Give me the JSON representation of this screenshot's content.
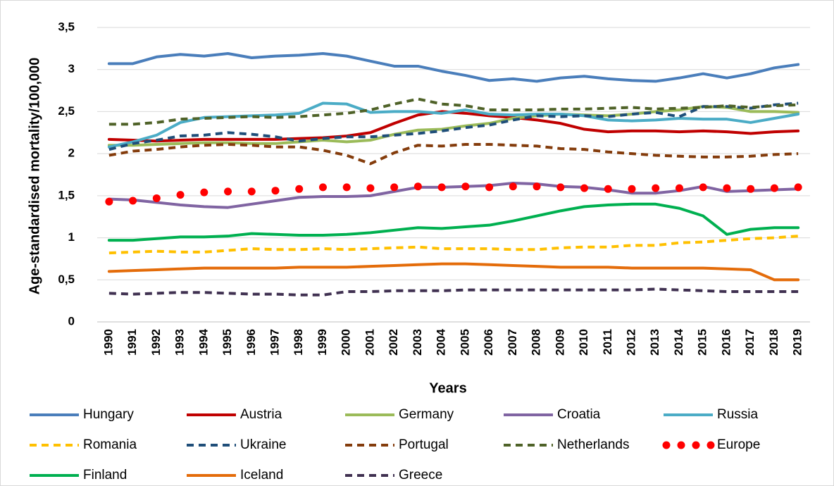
{
  "chart_data": {
    "type": "line",
    "x_label": "Years",
    "y_label": "Age-standardised mortality/100,000",
    "categories": [
      "1990",
      "1991",
      "1992",
      "1993",
      "1994",
      "1995",
      "1996",
      "1997",
      "1998",
      "1999",
      "2000",
      "2001",
      "2002",
      "2003",
      "2004",
      "2005",
      "2006",
      "2007",
      "2008",
      "2009",
      "2010",
      "2011",
      "2012",
      "2013",
      "2014",
      "2015",
      "2016",
      "2017",
      "2018",
      "2019"
    ],
    "ylim": [
      0,
      3.5
    ],
    "yticks": [
      0,
      {
        "value": 0.5,
        "label": "0,5"
      },
      1,
      {
        "value": 1.5,
        "label": "1,5"
      },
      2,
      {
        "value": 2.5,
        "label": "2,5"
      },
      3,
      {
        "value": 3.5,
        "label": "3,5"
      }
    ],
    "grid": true,
    "legend": "bottom",
    "series": [
      {
        "name": "Hungary",
        "color": "#4a7ebb",
        "style": "solid",
        "values": [
          3.07,
          3.07,
          3.15,
          3.18,
          3.16,
          3.19,
          3.14,
          3.16,
          3.17,
          3.19,
          3.16,
          3.1,
          3.04,
          3.04,
          2.98,
          2.93,
          2.87,
          2.89,
          2.86,
          2.9,
          2.92,
          2.89,
          2.87,
          2.86,
          2.9,
          2.95,
          2.9,
          2.95,
          3.02,
          3.06
        ]
      },
      {
        "name": "Austria",
        "color": "#c00000",
        "style": "solid",
        "values": [
          2.17,
          2.16,
          2.15,
          2.16,
          2.17,
          2.17,
          2.17,
          2.17,
          2.18,
          2.19,
          2.21,
          2.25,
          2.36,
          2.46,
          2.5,
          2.48,
          2.45,
          2.43,
          2.4,
          2.36,
          2.29,
          2.26,
          2.27,
          2.27,
          2.26,
          2.27,
          2.26,
          2.24,
          2.26,
          2.27
        ]
      },
      {
        "name": "Germany",
        "color": "#9bbb59",
        "style": "solid",
        "values": [
          2.1,
          2.1,
          2.11,
          2.12,
          2.13,
          2.13,
          2.12,
          2.12,
          2.14,
          2.16,
          2.14,
          2.16,
          2.23,
          2.28,
          2.29,
          2.33,
          2.36,
          2.42,
          2.45,
          2.47,
          2.46,
          2.45,
          2.47,
          2.5,
          2.52,
          2.56,
          2.55,
          2.5,
          2.5,
          2.49
        ]
      },
      {
        "name": "Croatia",
        "color": "#8064a2",
        "style": "solid",
        "values": [
          1.46,
          1.45,
          1.42,
          1.39,
          1.37,
          1.36,
          1.4,
          1.44,
          1.48,
          1.49,
          1.49,
          1.5,
          1.55,
          1.6,
          1.6,
          1.61,
          1.62,
          1.65,
          1.64,
          1.61,
          1.6,
          1.57,
          1.53,
          1.53,
          1.56,
          1.61,
          1.55,
          1.56,
          1.57,
          1.58
        ]
      },
      {
        "name": "Russia",
        "color": "#4bacc6",
        "style": "solid",
        "values": [
          2.08,
          2.14,
          2.22,
          2.37,
          2.43,
          2.44,
          2.45,
          2.46,
          2.48,
          2.6,
          2.59,
          2.49,
          2.5,
          2.5,
          2.48,
          2.52,
          2.47,
          2.46,
          2.47,
          2.47,
          2.45,
          2.4,
          2.39,
          2.4,
          2.42,
          2.41,
          2.41,
          2.37,
          2.42,
          2.47
        ]
      },
      {
        "name": "Romania",
        "color": "#ffc000",
        "style": "dashed",
        "values": [
          0.82,
          0.83,
          0.84,
          0.83,
          0.83,
          0.85,
          0.87,
          0.86,
          0.86,
          0.87,
          0.86,
          0.87,
          0.88,
          0.89,
          0.87,
          0.87,
          0.87,
          0.86,
          0.86,
          0.88,
          0.89,
          0.89,
          0.91,
          0.91,
          0.94,
          0.95,
          0.97,
          0.99,
          1.0,
          1.02
        ]
      },
      {
        "name": "Ukraine",
        "color": "#1f4e79",
        "style": "dashed",
        "values": [
          2.05,
          2.12,
          2.16,
          2.21,
          2.22,
          2.25,
          2.23,
          2.2,
          2.15,
          2.18,
          2.2,
          2.2,
          2.22,
          2.24,
          2.27,
          2.31,
          2.34,
          2.4,
          2.45,
          2.44,
          2.45,
          2.44,
          2.47,
          2.49,
          2.44,
          2.56,
          2.56,
          2.54,
          2.58,
          2.6
        ]
      },
      {
        "name": "Portugal",
        "color": "#843c0c",
        "style": "dashed",
        "values": [
          1.98,
          2.03,
          2.05,
          2.08,
          2.1,
          2.11,
          2.1,
          2.08,
          2.08,
          2.04,
          1.98,
          1.88,
          2.01,
          2.1,
          2.09,
          2.11,
          2.11,
          2.1,
          2.09,
          2.06,
          2.05,
          2.02,
          2.0,
          1.98,
          1.97,
          1.96,
          1.96,
          1.97,
          1.99,
          2.0
        ]
      },
      {
        "name": "Netherlands",
        "color": "#4f6228",
        "style": "dashed",
        "values": [
          2.35,
          2.35,
          2.37,
          2.41,
          2.42,
          2.43,
          2.44,
          2.43,
          2.44,
          2.46,
          2.48,
          2.52,
          2.59,
          2.65,
          2.59,
          2.57,
          2.52,
          2.52,
          2.52,
          2.53,
          2.53,
          2.54,
          2.55,
          2.53,
          2.54,
          2.55,
          2.57,
          2.55,
          2.57,
          2.58
        ]
      },
      {
        "name": "Europe",
        "color": "#ff0000",
        "style": "dotted",
        "values": [
          1.43,
          1.44,
          1.47,
          1.51,
          1.54,
          1.55,
          1.55,
          1.56,
          1.58,
          1.6,
          1.6,
          1.59,
          1.6,
          1.61,
          1.6,
          1.61,
          1.6,
          1.61,
          1.61,
          1.6,
          1.59,
          1.58,
          1.58,
          1.59,
          1.59,
          1.6,
          1.59,
          1.58,
          1.59,
          1.6
        ]
      },
      {
        "name": "Finland",
        "color": "#00b050",
        "style": "solid",
        "values": [
          0.97,
          0.97,
          0.99,
          1.01,
          1.01,
          1.02,
          1.05,
          1.04,
          1.03,
          1.03,
          1.04,
          1.06,
          1.09,
          1.12,
          1.11,
          1.13,
          1.15,
          1.2,
          1.26,
          1.32,
          1.37,
          1.39,
          1.4,
          1.4,
          1.35,
          1.26,
          1.04,
          1.1,
          1.12,
          1.12
        ]
      },
      {
        "name": "Iceland",
        "color": "#e46c0a",
        "style": "solid",
        "values": [
          0.6,
          0.61,
          0.62,
          0.63,
          0.64,
          0.64,
          0.64,
          0.64,
          0.65,
          0.65,
          0.65,
          0.66,
          0.67,
          0.68,
          0.69,
          0.69,
          0.68,
          0.67,
          0.66,
          0.65,
          0.65,
          0.65,
          0.64,
          0.64,
          0.64,
          0.64,
          0.63,
          0.62,
          0.5,
          0.5
        ]
      },
      {
        "name": "Greece",
        "color": "#403151",
        "style": "dashed",
        "values": [
          0.34,
          0.33,
          0.34,
          0.35,
          0.35,
          0.34,
          0.33,
          0.33,
          0.32,
          0.32,
          0.36,
          0.36,
          0.37,
          0.37,
          0.37,
          0.38,
          0.38,
          0.38,
          0.38,
          0.38,
          0.38,
          0.38,
          0.38,
          0.39,
          0.38,
          0.37,
          0.36,
          0.36,
          0.36,
          0.36
        ]
      }
    ]
  }
}
